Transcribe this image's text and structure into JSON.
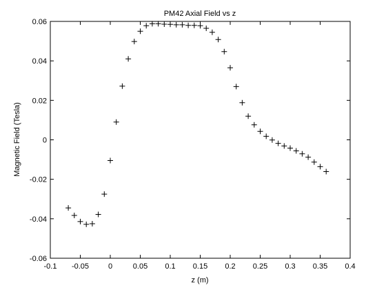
{
  "chart_data": {
    "type": "scatter",
    "title": "PM42 Axial Field vs z",
    "xlabel": "z (m)",
    "ylabel": "Magnetic Field (Tesla)",
    "xlim": [
      -0.1,
      0.4
    ],
    "ylim": [
      -0.06,
      0.06
    ],
    "xticks": [
      -0.1,
      -0.05,
      0,
      0.05,
      0.1,
      0.15,
      0.2,
      0.25,
      0.3,
      0.35,
      0.4
    ],
    "xtick_labels": [
      "-0.1",
      "-0.05",
      "0",
      "0.05",
      "0.1",
      "0.15",
      "0.2",
      "0.25",
      "0.3",
      "0.35",
      "0.4"
    ],
    "yticks": [
      -0.06,
      -0.04,
      -0.02,
      0,
      0.02,
      0.04,
      0.06
    ],
    "ytick_labels": [
      "-0.06",
      "-0.04",
      "-0.02",
      "0",
      "0.02",
      "0.04",
      "0.06"
    ],
    "grid": false,
    "marker": "plus",
    "marker_color": "#000000",
    "x": [
      -0.07,
      -0.06,
      -0.05,
      -0.04,
      -0.03,
      -0.02,
      -0.01,
      0.0,
      0.01,
      0.02,
      0.03,
      0.04,
      0.05,
      0.06,
      0.07,
      0.08,
      0.09,
      0.1,
      0.11,
      0.12,
      0.13,
      0.14,
      0.15,
      0.16,
      0.17,
      0.18,
      0.19,
      0.2,
      0.21,
      0.22,
      0.23,
      0.24,
      0.25,
      0.26,
      0.27,
      0.28,
      0.29,
      0.3,
      0.31,
      0.32,
      0.33,
      0.34,
      0.35,
      0.36
    ],
    "y": [
      -0.0345,
      -0.0383,
      -0.0414,
      -0.0428,
      -0.0425,
      -0.0378,
      -0.0275,
      -0.0105,
      0.009,
      0.0272,
      0.041,
      0.0498,
      0.055,
      0.0578,
      0.0588,
      0.0588,
      0.0586,
      0.0585,
      0.0583,
      0.0583,
      0.058,
      0.058,
      0.0578,
      0.0565,
      0.0545,
      0.0508,
      0.0447,
      0.0365,
      0.027,
      0.0188,
      0.012,
      0.0076,
      0.0043,
      0.0018,
      -0.0001,
      -0.0018,
      -0.0031,
      -0.0042,
      -0.0056,
      -0.0071,
      -0.0088,
      -0.0113,
      -0.0136,
      -0.0161
    ]
  }
}
